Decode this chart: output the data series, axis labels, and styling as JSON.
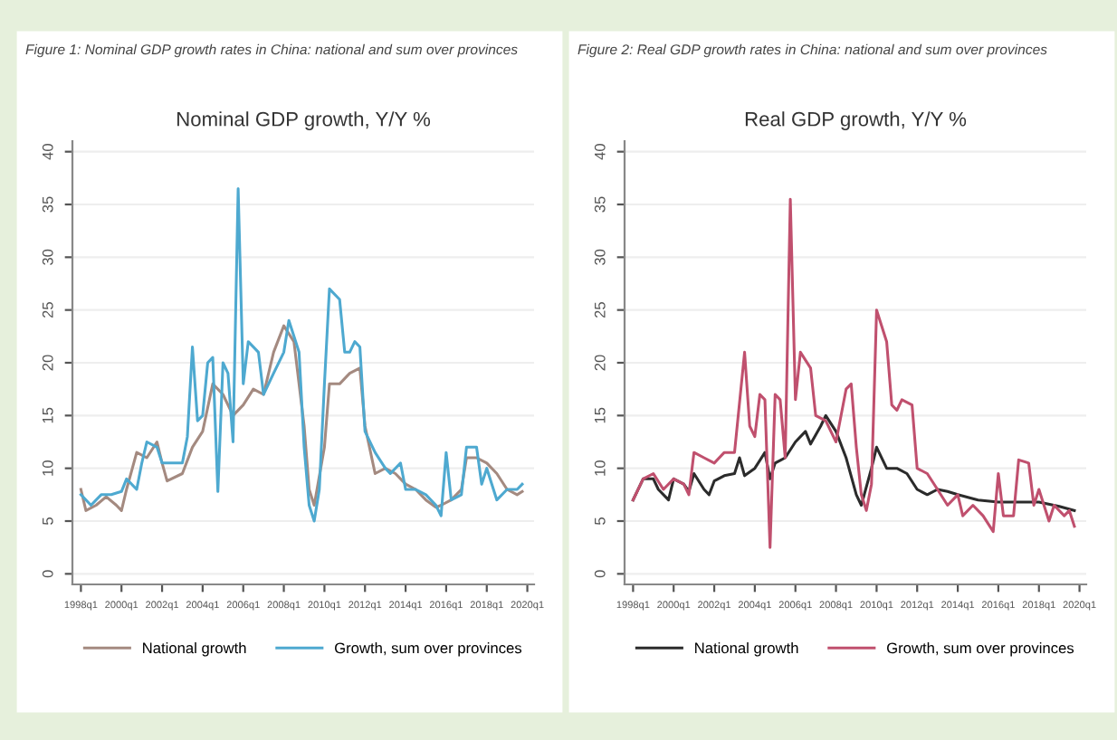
{
  "chart_data": [
    {
      "type": "line",
      "title": "Figure 1: Nominal GDP growth rates in China: national and sum over provinces",
      "subtitle": "Nominal GDP growth, Y/Y %",
      "xlim": [
        "1997-08",
        "2020-05"
      ],
      "xticks": [
        {
          "value": "1998-01",
          "label": "1998q1"
        },
        {
          "value": "2000-01",
          "label": "2000q1"
        },
        {
          "value": "2002-01",
          "label": "2002q1"
        },
        {
          "value": "2004-01",
          "label": "2004q1"
        },
        {
          "value": "2006-01",
          "label": "2006q1"
        },
        {
          "value": "2008-01",
          "label": "2008q1"
        },
        {
          "value": "2010-01",
          "label": "2010q1"
        },
        {
          "value": "2012-01",
          "label": "2012q1"
        },
        {
          "value": "2014-01",
          "label": "2014q1"
        },
        {
          "value": "2016-01",
          "label": "2016q1"
        },
        {
          "value": "2018-01",
          "label": "2018q1"
        },
        {
          "value": "2020-01",
          "label": "2020q1"
        }
      ],
      "ylim": [
        -1,
        41
      ],
      "yticks": [
        0,
        5,
        10,
        15,
        20,
        25,
        30,
        35,
        40
      ],
      "grid": "y",
      "legend": "bottom",
      "series": [
        {
          "name": "National growth",
          "color": "#a48a80",
          "x": [
            "1998-01",
            "1998-04",
            "1998-10",
            "1999-04",
            "1999-10",
            "2000-01",
            "2000-04",
            "2000-10",
            "2001-04",
            "2001-10",
            "2002-01",
            "2002-04",
            "2003-01",
            "2003-07",
            "2004-01",
            "2004-07",
            "2005-01",
            "2005-07",
            "2006-01",
            "2006-07",
            "2007-01",
            "2007-07",
            "2008-01",
            "2008-07",
            "2009-01",
            "2009-04",
            "2009-07",
            "2010-01",
            "2010-04",
            "2010-10",
            "2011-04",
            "2011-10",
            "2012-01",
            "2012-07",
            "2013-01",
            "2013-07",
            "2014-01",
            "2014-07",
            "2015-01",
            "2015-07",
            "2015-10",
            "2016-04",
            "2016-10",
            "2017-01",
            "2017-07",
            "2018-01",
            "2018-07",
            "2019-01",
            "2019-07",
            "2019-10"
          ],
          "values": [
            8,
            6,
            6.5,
            7.3,
            6.5,
            6,
            8,
            11.5,
            11,
            12.5,
            10.5,
            8.8,
            9.5,
            12,
            13.5,
            18,
            17,
            15,
            16,
            17.5,
            17,
            21,
            23.5,
            22,
            14,
            8,
            6.5,
            12,
            18,
            18,
            19,
            19.5,
            14,
            9.5,
            10,
            9.5,
            8.5,
            8,
            7,
            6.3,
            6.5,
            7,
            8,
            11,
            11,
            10.5,
            9.5,
            8,
            7.5,
            7.8
          ]
        },
        {
          "name": "Growth, sum over provinces",
          "color": "#4ea9d0",
          "x": [
            "1998-01",
            "1998-07",
            "1999-01",
            "1999-07",
            "2000-01",
            "2000-04",
            "2000-10",
            "2001-01",
            "2001-04",
            "2001-10",
            "2002-01",
            "2002-07",
            "2003-01",
            "2003-04",
            "2003-07",
            "2003-10",
            "2004-01",
            "2004-04",
            "2004-07",
            "2004-10",
            "2005-01",
            "2005-04",
            "2005-07",
            "2005-10",
            "2006-01",
            "2006-04",
            "2006-10",
            "2007-01",
            "2007-07",
            "2008-01",
            "2008-04",
            "2008-10",
            "2009-01",
            "2009-04",
            "2009-07",
            "2009-10",
            "2010-01",
            "2010-04",
            "2010-10",
            "2011-01",
            "2011-04",
            "2011-07",
            "2011-10",
            "2012-01",
            "2012-07",
            "2013-01",
            "2013-04",
            "2013-10",
            "2014-01",
            "2014-07",
            "2015-01",
            "2015-07",
            "2015-10",
            "2016-01",
            "2016-04",
            "2016-10",
            "2017-01",
            "2017-07",
            "2017-10",
            "2018-01",
            "2018-07",
            "2019-01",
            "2019-07",
            "2019-10"
          ],
          "values": [
            7.5,
            6.5,
            7.5,
            7.5,
            7.8,
            9,
            8,
            10.5,
            12.5,
            12,
            10.5,
            10.5,
            10.5,
            13,
            21.5,
            14.5,
            15,
            20,
            20.5,
            7.8,
            20,
            19,
            12.5,
            36.5,
            18,
            22,
            21,
            17,
            19,
            21,
            24,
            21,
            12,
            6.5,
            5,
            8,
            18,
            27,
            26,
            21,
            21,
            22,
            21.5,
            13.5,
            11.5,
            10,
            9.5,
            10.5,
            8,
            8,
            7.5,
            6.5,
            5.5,
            11.5,
            7,
            7.5,
            12,
            12,
            8.5,
            10,
            7,
            8,
            8,
            8.5
          ]
        }
      ]
    },
    {
      "type": "line",
      "title": "Figure 2: Real GDP growth rates in China: national and sum over provinces",
      "subtitle": "Real GDP growth, Y/Y %",
      "xlim": [
        "1997-08",
        "2020-05"
      ],
      "xticks": [
        {
          "value": "1998-01",
          "label": "1998q1"
        },
        {
          "value": "2000-01",
          "label": "2000q1"
        },
        {
          "value": "2002-01",
          "label": "2002q1"
        },
        {
          "value": "2004-01",
          "label": "2004q1"
        },
        {
          "value": "2006-01",
          "label": "2006q1"
        },
        {
          "value": "2008-01",
          "label": "2008q1"
        },
        {
          "value": "2010-01",
          "label": "2010q1"
        },
        {
          "value": "2012-01",
          "label": "2012q1"
        },
        {
          "value": "2014-01",
          "label": "2014q1"
        },
        {
          "value": "2016-01",
          "label": "2016q1"
        },
        {
          "value": "2018-01",
          "label": "2018q1"
        },
        {
          "value": "2020-01",
          "label": "2020q1"
        }
      ],
      "ylim": [
        -1,
        41
      ],
      "yticks": [
        0,
        5,
        10,
        15,
        20,
        25,
        30,
        35,
        40
      ],
      "grid": "y",
      "legend": "bottom",
      "series": [
        {
          "name": "National growth",
          "color": "#2b2b2b",
          "x": [
            "1998-01",
            "1998-07",
            "1999-01",
            "1999-04",
            "1999-10",
            "2000-01",
            "2000-07",
            "2000-10",
            "2001-01",
            "2001-07",
            "2001-10",
            "2002-01",
            "2002-07",
            "2003-01",
            "2003-04",
            "2003-07",
            "2004-01",
            "2004-07",
            "2004-10",
            "2005-01",
            "2005-07",
            "2006-01",
            "2006-07",
            "2006-10",
            "2007-04",
            "2007-07",
            "2008-01",
            "2008-07",
            "2009-01",
            "2009-04",
            "2009-10",
            "2010-01",
            "2010-07",
            "2011-01",
            "2011-07",
            "2012-01",
            "2012-07",
            "2013-01",
            "2013-07",
            "2014-01",
            "2015-01",
            "2016-01",
            "2017-01",
            "2018-01",
            "2019-01",
            "2019-10"
          ],
          "values": [
            7,
            9,
            9,
            8,
            7,
            9,
            8.5,
            7.8,
            9.5,
            8,
            7.5,
            8.8,
            9.3,
            9.5,
            11,
            9.3,
            10,
            11.5,
            9,
            10.5,
            11,
            12.5,
            13.5,
            12.3,
            14,
            15,
            13.5,
            11,
            7.5,
            6.5,
            10,
            12,
            10,
            10,
            9.5,
            8,
            7.5,
            8,
            7.8,
            7.5,
            7,
            6.8,
            6.8,
            6.8,
            6.4,
            6
          ]
        },
        {
          "name": "Growth, sum over provinces",
          "color": "#c0506e",
          "x": [
            "1998-01",
            "1998-07",
            "1999-01",
            "1999-07",
            "2000-01",
            "2000-07",
            "2000-10",
            "2001-01",
            "2001-07",
            "2002-01",
            "2002-07",
            "2003-01",
            "2003-07",
            "2003-10",
            "2004-01",
            "2004-04",
            "2004-07",
            "2004-10",
            "2005-01",
            "2005-04",
            "2005-07",
            "2005-10",
            "2006-01",
            "2006-04",
            "2006-10",
            "2007-01",
            "2007-07",
            "2008-01",
            "2008-07",
            "2008-10",
            "2009-01",
            "2009-04",
            "2009-07",
            "2009-10",
            "2010-01",
            "2010-07",
            "2010-10",
            "2011-01",
            "2011-04",
            "2011-10",
            "2012-01",
            "2012-07",
            "2013-01",
            "2013-07",
            "2014-01",
            "2014-04",
            "2014-10",
            "2015-04",
            "2015-10",
            "2016-01",
            "2016-04",
            "2016-10",
            "2017-01",
            "2017-07",
            "2017-10",
            "2018-01",
            "2018-07",
            "2018-10",
            "2019-04",
            "2019-07",
            "2019-10"
          ],
          "values": [
            7,
            9,
            9.5,
            8,
            9,
            8.5,
            7.5,
            11.5,
            11,
            10.5,
            11.5,
            11.5,
            21,
            14,
            13,
            17,
            16.5,
            2.5,
            17,
            16.5,
            11,
            35.5,
            16.5,
            21,
            19.5,
            15,
            14.5,
            12.5,
            17.5,
            18,
            12,
            7.5,
            6,
            8.5,
            25,
            22,
            16,
            15.5,
            16.5,
            16,
            10,
            9.5,
            8,
            6.5,
            7.5,
            5.5,
            6.5,
            5.5,
            4,
            9.5,
            5.5,
            5.5,
            10.8,
            10.5,
            6.5,
            8,
            5,
            6.5,
            5.5,
            6,
            4.5
          ]
        }
      ]
    }
  ]
}
